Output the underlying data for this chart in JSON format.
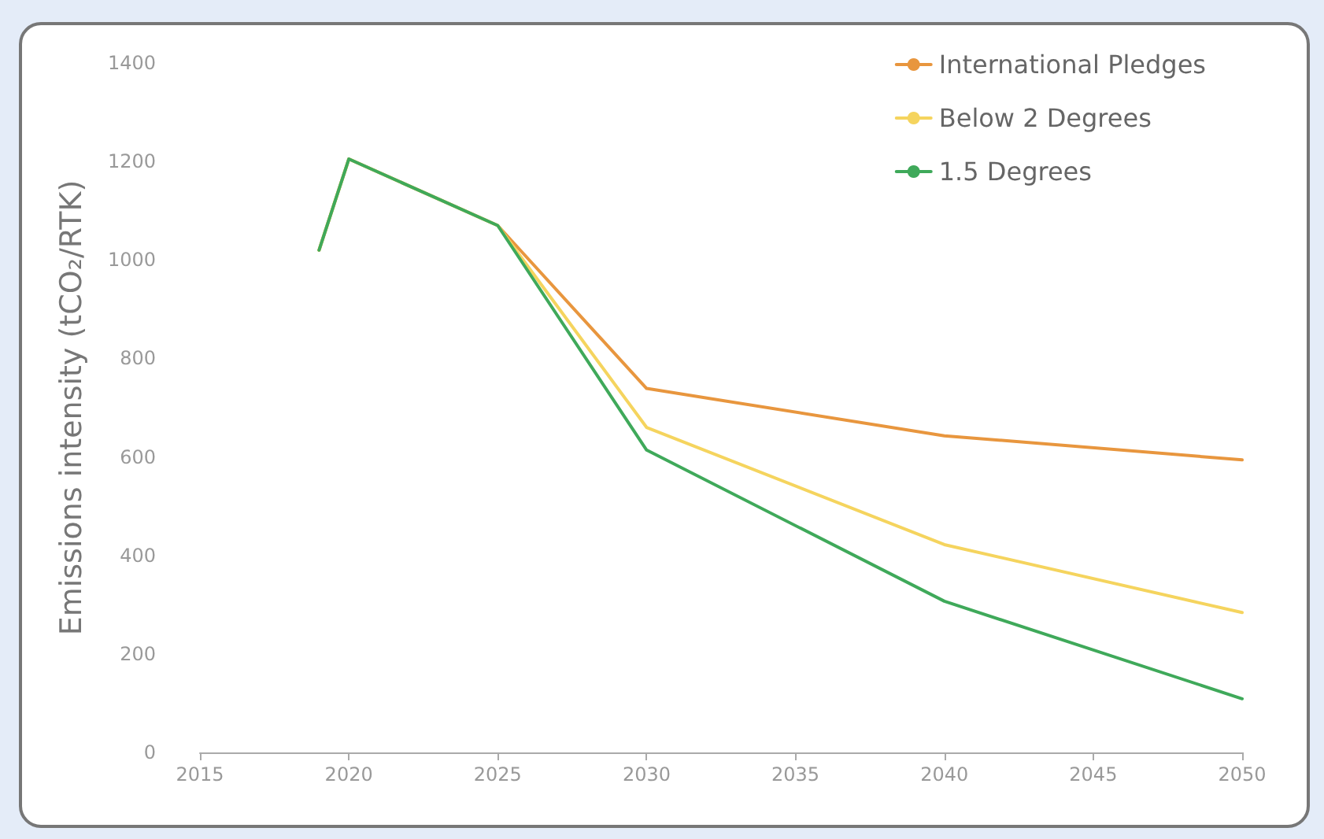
{
  "chart_data": {
    "type": "line",
    "ylabel": "Emissions intensity (tCO₂/RTK)",
    "x": [
      2019,
      2020,
      2025,
      2030,
      2040,
      2050
    ],
    "series": [
      {
        "name": "International Pledges",
        "color": "#e8963e",
        "values": [
          1020,
          1205,
          1070,
          739,
          643,
          594
        ]
      },
      {
        "name": "Below 2 Degrees",
        "color": "#f5d45e",
        "values": [
          1020,
          1205,
          1070,
          660,
          422,
          284
        ]
      },
      {
        "name": "1.5 Degrees",
        "color": "#3fa95a",
        "values": [
          1020,
          1205,
          1070,
          614,
          307,
          109
        ]
      }
    ],
    "xlim": [
      2015,
      2050
    ],
    "xticks": [
      2015,
      2020,
      2025,
      2030,
      2035,
      2040,
      2045,
      2050
    ],
    "ylim": [
      0,
      1400
    ],
    "yticks": [
      0,
      200,
      400,
      600,
      800,
      1000,
      1200,
      1400
    ],
    "grid": false,
    "legend": "top right",
    "marker": "none",
    "line_style": "solid"
  }
}
